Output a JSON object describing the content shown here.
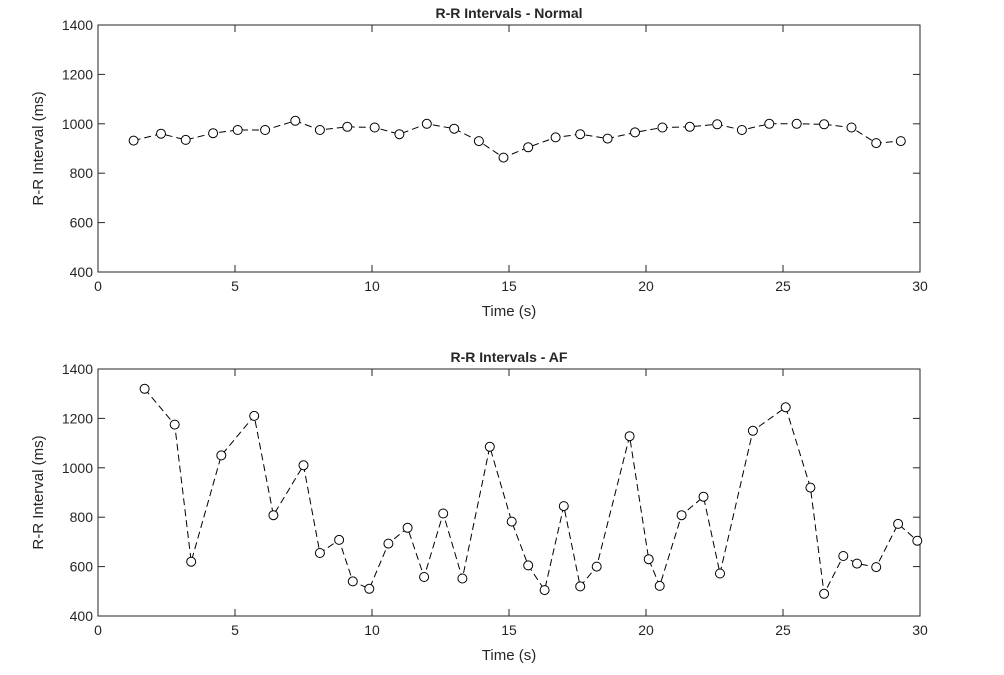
{
  "chart_data": [
    {
      "type": "line",
      "title": "R-R Intervals - Normal",
      "xlabel": "Time (s)",
      "ylabel": "R-R Interval (ms)",
      "xlim": [
        0,
        30
      ],
      "ylim": [
        400,
        1400
      ],
      "xticks": [
        "0",
        "5",
        "10",
        "15",
        "20",
        "25",
        "30"
      ],
      "yticks": [
        "400",
        "600",
        "800",
        "1000",
        "1200",
        "1400"
      ],
      "grid": false,
      "line_style": "dashed",
      "marker": "circle",
      "color": "#000000",
      "series": [
        {
          "x": [
            1.3,
            2.3,
            3.2,
            4.2,
            5.1,
            6.1,
            7.2,
            8.1,
            9.1,
            10.1,
            11.0,
            12.0,
            13.0,
            13.9,
            14.8,
            15.7,
            16.7,
            17.6,
            18.6,
            19.6,
            20.6,
            21.6,
            22.6,
            23.5,
            24.5,
            25.5,
            26.5,
            27.5,
            28.4,
            29.3
          ],
          "y": [
            932,
            960,
            935,
            962,
            975,
            975,
            1012,
            975,
            988,
            985,
            958,
            1000,
            980,
            930,
            863,
            905,
            945,
            958,
            940,
            965,
            985,
            988,
            998,
            975,
            1000,
            1000,
            998,
            985,
            922,
            930
          ]
        }
      ]
    },
    {
      "type": "line",
      "title": "R-R Intervals - AF",
      "xlabel": "Time (s)",
      "ylabel": "R-R Interval (ms)",
      "xlim": [
        0,
        30
      ],
      "ylim": [
        400,
        1400
      ],
      "xticks": [
        "0",
        "5",
        "10",
        "15",
        "20",
        "25",
        "30"
      ],
      "yticks": [
        "400",
        "600",
        "800",
        "1000",
        "1200",
        "1400"
      ],
      "grid": false,
      "line_style": "dashed",
      "marker": "circle",
      "color": "#000000",
      "series": [
        {
          "x": [
            1.7,
            2.8,
            3.4,
            4.5,
            5.7,
            6.4,
            7.5,
            8.1,
            8.8,
            9.3,
            9.9,
            10.6,
            11.3,
            11.9,
            12.6,
            13.3,
            14.3,
            15.1,
            15.7,
            16.3,
            17.0,
            17.6,
            18.2,
            19.4,
            20.1,
            20.5,
            21.3,
            22.1,
            22.7,
            23.9,
            25.1,
            26.0,
            26.5,
            27.2,
            27.7,
            28.4,
            29.2,
            29.9
          ],
          "y": [
            1320,
            1175,
            620,
            1050,
            1210,
            808,
            1010,
            655,
            708,
            540,
            510,
            693,
            757,
            558,
            815,
            552,
            1085,
            782,
            605,
            505,
            845,
            520,
            600,
            1128,
            630,
            522,
            808,
            883,
            572,
            1150,
            1245,
            920,
            490,
            643,
            612,
            598,
            773,
            705
          ]
        }
      ]
    }
  ]
}
